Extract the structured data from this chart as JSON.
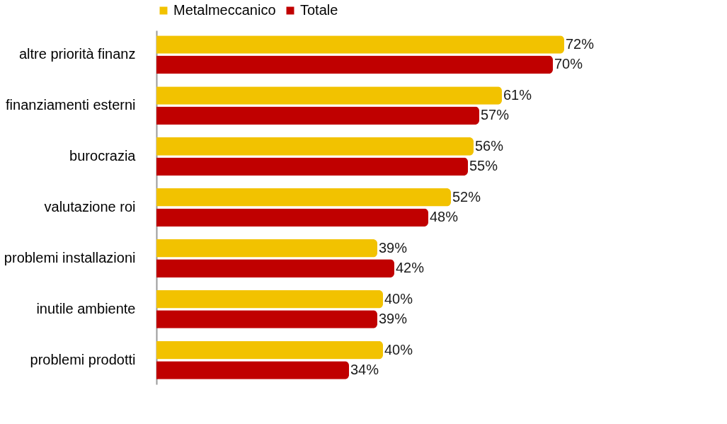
{
  "chart_data": {
    "type": "bar",
    "orientation": "horizontal",
    "legend": "top",
    "categories": [
      "altre priorità finanz",
      "finanziamenti esterni",
      "burocrazia",
      "valutazione roi",
      "problemi installazioni",
      "inutile ambiente",
      "problemi prodotti"
    ],
    "series": [
      {
        "name": "Metalmeccanico",
        "color": "#f2c200",
        "values": [
          72,
          61,
          56,
          52,
          39,
          40,
          40
        ],
        "value_labels": [
          "72%",
          "61%",
          "56%",
          "52%",
          "39%",
          "40%",
          "40%"
        ]
      },
      {
        "name": "Totale",
        "color": "#c00000",
        "values": [
          70,
          57,
          55,
          48,
          42,
          39,
          34
        ],
        "value_labels": [
          "70%",
          "57%",
          "55%",
          "48%",
          "42%",
          "39%",
          "34%"
        ]
      }
    ]
  }
}
